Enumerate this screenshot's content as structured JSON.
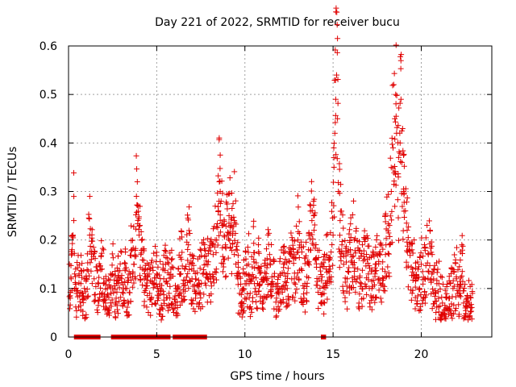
{
  "chart_data": {
    "type": "scatter",
    "title": "Day 221 of 2022, SRMTID for receiver bucu",
    "xlabel": "GPS time / hours",
    "ylabel": "SRMTID / TECUs",
    "xlim": [
      0,
      24
    ],
    "ylim": [
      0,
      0.6
    ],
    "x_ticks": [
      0,
      5,
      10,
      15,
      20
    ],
    "x_tick_labels": [
      "0",
      "5",
      "10",
      "15",
      "20"
    ],
    "y_ticks": [
      0,
      0.1,
      0.2,
      0.3,
      0.4,
      0.5,
      0.6
    ],
    "y_tick_labels": [
      "0",
      "0.1",
      "0.2",
      "0.3",
      "0.4",
      "0.5",
      "0.6"
    ],
    "grid": true,
    "marker": "+",
    "series_color": "#e00000",
    "series": [
      {
        "name": "SRMTID",
        "points": [
          [
            0.05,
            0.15
          ],
          [
            0.1,
            0.08
          ],
          [
            0.15,
            0.12
          ],
          [
            0.2,
            0.18
          ],
          [
            0.25,
            0.21
          ],
          [
            0.3,
            0.24
          ],
          [
            0.35,
            0.13
          ],
          [
            0.45,
            0.09
          ],
          [
            0.6,
            0.13
          ],
          [
            0.7,
            0.11
          ],
          [
            0.8,
            0.09
          ],
          [
            0.9,
            0.1
          ],
          [
            1.0,
            0.08
          ],
          [
            1.2,
            0.21
          ],
          [
            1.3,
            0.16
          ],
          [
            1.45,
            0.12
          ],
          [
            1.7,
            0.11
          ],
          [
            1.9,
            0.14
          ],
          [
            2.0,
            0.12
          ],
          [
            2.1,
            0.07
          ],
          [
            2.2,
            0.1
          ],
          [
            2.3,
            0.06
          ],
          [
            2.4,
            0.09
          ],
          [
            2.5,
            0.13
          ],
          [
            2.7,
            0.08
          ],
          [
            2.8,
            0.11
          ],
          [
            3.0,
            0.12
          ],
          [
            3.1,
            0.09
          ],
          [
            3.2,
            0.14
          ],
          [
            3.3,
            0.1
          ],
          [
            3.4,
            0.07
          ],
          [
            3.5,
            0.13
          ],
          [
            3.6,
            0.18
          ],
          [
            3.7,
            0.15
          ],
          [
            3.8,
            0.12
          ],
          [
            3.85,
            0.29
          ],
          [
            3.9,
            0.32
          ],
          [
            3.95,
            0.27
          ],
          [
            4.0,
            0.21
          ],
          [
            4.05,
            0.23
          ],
          [
            4.1,
            0.17
          ],
          [
            4.2,
            0.14
          ],
          [
            4.3,
            0.12
          ],
          [
            4.4,
            0.1
          ],
          [
            4.6,
            0.09
          ],
          [
            4.8,
            0.11
          ],
          [
            5.0,
            0.13
          ],
          [
            5.1,
            0.08
          ],
          [
            5.2,
            0.1
          ],
          [
            5.3,
            0.06
          ],
          [
            5.4,
            0.12
          ],
          [
            5.5,
            0.15
          ],
          [
            5.6,
            0.11
          ],
          [
            5.7,
            0.09
          ],
          [
            5.8,
            0.14
          ],
          [
            6.0,
            0.08
          ],
          [
            6.1,
            0.05
          ],
          [
            6.2,
            0.1
          ],
          [
            6.3,
            0.13
          ],
          [
            6.4,
            0.16
          ],
          [
            6.5,
            0.11
          ],
          [
            6.6,
            0.14
          ],
          [
            6.8,
            0.19
          ],
          [
            6.9,
            0.17
          ],
          [
            7.0,
            0.12
          ],
          [
            7.2,
            0.09
          ],
          [
            7.4,
            0.11
          ],
          [
            7.6,
            0.13
          ],
          [
            7.8,
            0.15
          ],
          [
            8.0,
            0.13
          ],
          [
            8.2,
            0.17
          ],
          [
            8.4,
            0.2
          ],
          [
            8.5,
            0.26
          ],
          [
            8.55,
            0.32
          ],
          [
            8.6,
            0.3
          ],
          [
            8.65,
            0.28
          ],
          [
            8.7,
            0.23
          ],
          [
            8.8,
            0.16
          ],
          [
            8.9,
            0.19
          ],
          [
            9.0,
            0.21
          ],
          [
            9.1,
            0.25
          ],
          [
            9.2,
            0.23
          ],
          [
            9.3,
            0.21
          ],
          [
            9.4,
            0.24
          ],
          [
            9.5,
            0.18
          ],
          [
            9.6,
            0.12
          ],
          [
            9.7,
            0.09
          ],
          [
            9.8,
            0.07
          ],
          [
            9.9,
            0.1
          ],
          [
            10.0,
            0.13
          ],
          [
            10.1,
            0.11
          ],
          [
            10.2,
            0.15
          ],
          [
            10.3,
            0.09
          ],
          [
            10.4,
            0.12
          ],
          [
            10.5,
            0.16
          ],
          [
            10.6,
            0.1
          ],
          [
            10.8,
            0.14
          ],
          [
            11.0,
            0.08
          ],
          [
            11.2,
            0.12
          ],
          [
            11.4,
            0.17
          ],
          [
            11.6,
            0.11
          ],
          [
            11.8,
            0.09
          ],
          [
            12.0,
            0.13
          ],
          [
            12.2,
            0.15
          ],
          [
            12.4,
            0.1
          ],
          [
            12.6,
            0.17
          ],
          [
            12.8,
            0.12
          ],
          [
            13.0,
            0.2
          ],
          [
            13.2,
            0.14
          ],
          [
            13.4,
            0.11
          ],
          [
            13.6,
            0.18
          ],
          [
            13.8,
            0.24
          ],
          [
            13.9,
            0.25
          ],
          [
            14.0,
            0.16
          ],
          [
            14.2,
            0.12
          ],
          [
            14.4,
            0.09
          ],
          [
            14.6,
            0.14
          ],
          [
            14.8,
            0.16
          ],
          [
            15.0,
            0.21
          ],
          [
            15.05,
            0.35
          ],
          [
            15.1,
            0.42
          ],
          [
            15.15,
            0.49
          ],
          [
            15.2,
            0.54
          ],
          [
            15.25,
            0.45
          ],
          [
            15.3,
            0.3
          ],
          [
            15.4,
            0.24
          ],
          [
            15.5,
            0.19
          ],
          [
            15.6,
            0.15
          ],
          [
            15.8,
            0.12
          ],
          [
            16.0,
            0.17
          ],
          [
            16.2,
            0.2
          ],
          [
            16.4,
            0.14
          ],
          [
            16.6,
            0.11
          ],
          [
            16.8,
            0.16
          ],
          [
            17.0,
            0.13
          ],
          [
            17.2,
            0.1
          ],
          [
            17.4,
            0.15
          ],
          [
            17.6,
            0.12
          ],
          [
            17.8,
            0.14
          ],
          [
            18.0,
            0.19
          ],
          [
            18.2,
            0.23
          ],
          [
            18.3,
            0.3
          ],
          [
            18.4,
            0.39
          ],
          [
            18.5,
            0.45
          ],
          [
            18.55,
            0.5
          ],
          [
            18.6,
            0.42
          ],
          [
            18.7,
            0.33
          ],
          [
            18.8,
            0.4
          ],
          [
            18.85,
            0.49
          ],
          [
            18.9,
            0.36
          ],
          [
            19.0,
            0.3
          ],
          [
            19.1,
            0.26
          ],
          [
            19.2,
            0.22
          ],
          [
            19.3,
            0.18
          ],
          [
            19.5,
            0.14
          ],
          [
            19.7,
            0.12
          ],
          [
            19.9,
            0.1
          ],
          [
            20.0,
            0.15
          ],
          [
            20.2,
            0.12
          ],
          [
            20.4,
            0.17
          ],
          [
            20.6,
            0.13
          ],
          [
            20.8,
            0.09
          ],
          [
            21.0,
            0.11
          ],
          [
            21.2,
            0.07
          ],
          [
            21.4,
            0.06
          ],
          [
            21.6,
            0.08
          ],
          [
            21.8,
            0.1
          ],
          [
            22.0,
            0.12
          ],
          [
            22.2,
            0.09
          ],
          [
            22.3,
            0.19
          ],
          [
            22.4,
            0.07
          ],
          [
            22.5,
            0.06
          ],
          [
            22.6,
            0.08
          ],
          [
            22.7,
            0.07
          ],
          [
            22.8,
            0.06
          ],
          [
            22.9,
            0.09
          ]
        ],
        "zero_marker_ranges": [
          [
            0.4,
            1.8
          ],
          [
            2.5,
            5.8
          ],
          [
            6.0,
            7.8
          ],
          [
            14.4,
            14.55
          ]
        ]
      }
    ]
  }
}
